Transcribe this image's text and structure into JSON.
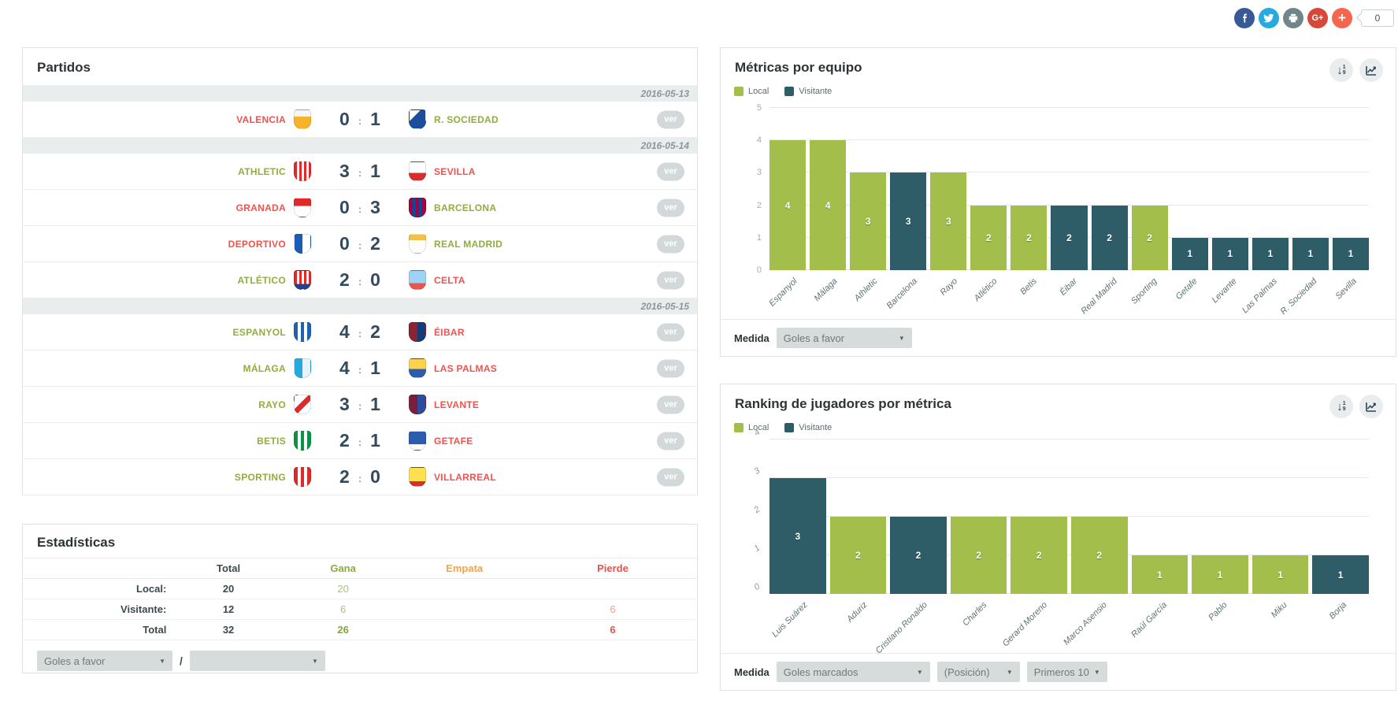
{
  "social": {
    "count": "0",
    "icons": [
      {
        "name": "facebook",
        "color": "#3a5a97"
      },
      {
        "name": "twitter",
        "color": "#28a9e0"
      },
      {
        "name": "print",
        "color": "#718689"
      },
      {
        "name": "google-plus",
        "color": "#d6493a"
      },
      {
        "name": "share-plus",
        "color": "#f4674e"
      }
    ]
  },
  "partidos": {
    "title": "Partidos",
    "ver_label": "ver",
    "groups": [
      {
        "date": "2016-05-13",
        "matches": [
          {
            "home_name": "VALENCIA",
            "home_key": "valencia",
            "home_result": "loss",
            "score_home": "0",
            "score_away": "1",
            "away_name": "R. SOCIEDAD",
            "away_key": "rsociedad",
            "away_result": "win"
          }
        ]
      },
      {
        "date": "2016-05-14",
        "matches": [
          {
            "home_name": "ATHLETIC",
            "home_key": "athletic",
            "home_result": "win",
            "score_home": "3",
            "score_away": "1",
            "away_name": "SEVILLA",
            "away_key": "sevilla",
            "away_result": "loss"
          },
          {
            "home_name": "GRANADA",
            "home_key": "granada",
            "home_result": "loss",
            "score_home": "0",
            "score_away": "3",
            "away_name": "BARCELONA",
            "away_key": "barcelona",
            "away_result": "win"
          },
          {
            "home_name": "DEPORTIVO",
            "home_key": "deportivo",
            "home_result": "loss",
            "score_home": "0",
            "score_away": "2",
            "away_name": "REAL MADRID",
            "away_key": "realmadrid",
            "away_result": "win"
          },
          {
            "home_name": "ATLÉTICO",
            "home_key": "atletico",
            "home_result": "win",
            "score_home": "2",
            "score_away": "0",
            "away_name": "CELTA",
            "away_key": "celta",
            "away_result": "loss"
          }
        ]
      },
      {
        "date": "2016-05-15",
        "matches": [
          {
            "home_name": "ESPANYOL",
            "home_key": "espanyol",
            "home_result": "win",
            "score_home": "4",
            "score_away": "2",
            "away_name": "ÉIBAR",
            "away_key": "eibar",
            "away_result": "loss"
          },
          {
            "home_name": "MÁLAGA",
            "home_key": "malaga",
            "home_result": "win",
            "score_home": "4",
            "score_away": "1",
            "away_name": "LAS PALMAS",
            "away_key": "laspalmas",
            "away_result": "loss"
          },
          {
            "home_name": "RAYO",
            "home_key": "rayo",
            "home_result": "win",
            "score_home": "3",
            "score_away": "1",
            "away_name": "LEVANTE",
            "away_key": "levante",
            "away_result": "loss"
          },
          {
            "home_name": "BETIS",
            "home_key": "betis",
            "home_result": "win",
            "score_home": "2",
            "score_away": "1",
            "away_name": "GETAFE",
            "away_key": "getafe",
            "away_result": "loss"
          },
          {
            "home_name": "SPORTING",
            "home_key": "sporting",
            "home_result": "win",
            "score_home": "2",
            "score_away": "0",
            "away_name": "VILLARREAL",
            "away_key": "villarreal",
            "away_result": "loss"
          }
        ]
      }
    ]
  },
  "estadisticas": {
    "title": "Estadísticas",
    "headers": {
      "total": "Total",
      "gana": "Gana",
      "empata": "Empata",
      "pierde": "Pierde"
    },
    "rows": [
      {
        "label": "Local:",
        "total": "20",
        "gana": "20",
        "empata": "",
        "pierde": "",
        "bold": false
      },
      {
        "label": "Visitante:",
        "total": "12",
        "gana": "6",
        "empata": "",
        "pierde": "6",
        "bold": false
      },
      {
        "label": "Total",
        "total": "32",
        "gana": "26",
        "empata": "",
        "pierde": "6",
        "bold": true
      }
    ],
    "filters": {
      "left_value": "Goles a favor",
      "separator": "/",
      "right_value": ""
    }
  },
  "metricas_controls": {
    "label": "Medida",
    "value": "Goles a favor"
  },
  "ranking_controls": {
    "label": "Medida",
    "selects": [
      "Goles marcados",
      "(Posición)",
      "Primeros 10"
    ]
  },
  "chart_data": [
    {
      "type": "bar",
      "title": "Métricas por equipo",
      "categories": [
        "Espanyol",
        "Málaga",
        "Athletic",
        "Barcelona",
        "Rayo",
        "Atlético",
        "Betis",
        "Éibar",
        "Real Madrid",
        "Sporting",
        "Getafe",
        "Levante",
        "Las Palmas",
        "R. Sociedad",
        "Sevilla"
      ],
      "values": [
        4,
        4,
        3,
        3,
        3,
        2,
        2,
        2,
        2,
        2,
        1,
        1,
        1,
        1,
        1
      ],
      "series_key": [
        "local",
        "local",
        "local",
        "visitante",
        "local",
        "local",
        "local",
        "visitante",
        "visitante",
        "local",
        "visitante",
        "visitante",
        "visitante",
        "visitante",
        "visitante"
      ],
      "legend": {
        "local": "Local",
        "visitante": "Visitante"
      },
      "colors": {
        "local": "#a3be4a",
        "visitante": "#2e5d68"
      },
      "ylim": [
        0,
        5
      ],
      "grid": true,
      "legend_position": "top-left",
      "xlabel": "",
      "ylabel": ""
    },
    {
      "type": "bar",
      "title": "Ranking de jugadores por métrica",
      "categories": [
        "Luis Suárez",
        "Aduriz",
        "Cristiano Ronaldo",
        "Charles",
        "Gerard Moreno",
        "Marco Asensio",
        "Raúl García",
        "Pablo",
        "Miku",
        "Borja"
      ],
      "values": [
        3,
        2,
        2,
        2,
        2,
        2,
        1,
        1,
        1,
        1
      ],
      "series_key": [
        "visitante",
        "local",
        "visitante",
        "local",
        "local",
        "local",
        "local",
        "local",
        "local",
        "visitante"
      ],
      "legend": {
        "local": "Local",
        "visitante": "Visitante"
      },
      "colors": {
        "local": "#a3be4a",
        "visitante": "#2e5d68"
      },
      "ylim": [
        0,
        4
      ],
      "grid": true,
      "legend_position": "top-left",
      "xlabel": "",
      "ylabel": ""
    }
  ]
}
